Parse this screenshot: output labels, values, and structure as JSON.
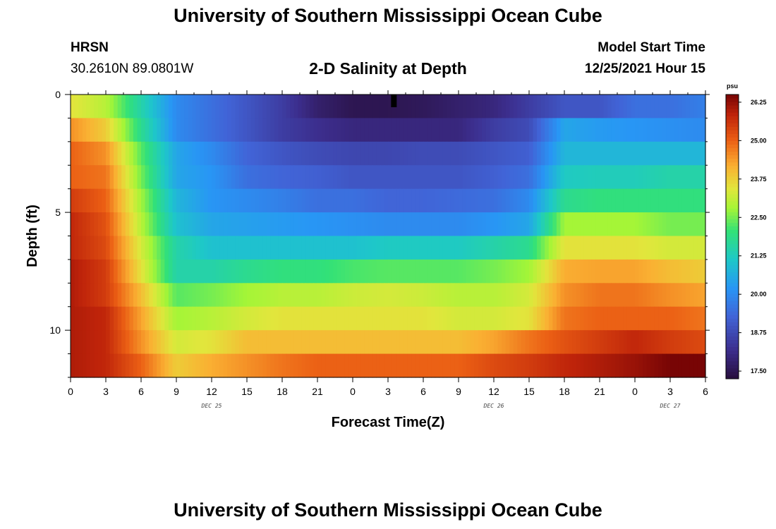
{
  "header": {
    "title_top": "University of Southern Mississippi Ocean Cube",
    "title_bottom": "University of Southern Mississippi Ocean Cube",
    "station": "HRSN",
    "coords": "30.2610N  89.0801W",
    "subtitle": "2-D Salinity at Depth",
    "model_label": "Model Start Time",
    "model_time": "12/25/2021 Hour 15"
  },
  "chart_data": {
    "type": "heatmap",
    "title": "2-D Salinity at Depth",
    "xlabel": "Forecast Time(Z)",
    "ylabel": "Depth (ft)",
    "x_tick_labels": [
      "0",
      "3",
      "6",
      "9",
      "12",
      "15",
      "18",
      "21",
      "0",
      "3",
      "6",
      "9",
      "12",
      "15",
      "18",
      "21",
      "0",
      "3",
      "6"
    ],
    "date_labels": [
      {
        "text": "DEC 25",
        "at_hour": 12
      },
      {
        "text": "DEC 26",
        "at_hour": 36
      },
      {
        "text": "DEC 27",
        "at_hour": 51
      }
    ],
    "x_range_hours": [
      0,
      54
    ],
    "y_ticks": [
      0,
      5,
      10
    ],
    "y_range_ft": [
      0,
      12
    ],
    "depth_levels_ft": [
      0.5,
      1.5,
      2.5,
      3.5,
      4.5,
      5.5,
      6.5,
      7.5,
      8.5,
      9.5,
      10.5,
      11.5
    ],
    "colorbar": {
      "unit": "psu",
      "min": 17.25,
      "max": 26.5,
      "tick_labels": [
        "17.50",
        "18.75",
        "20.00",
        "21.25",
        "22.50",
        "23.75",
        "25.00",
        "26.25"
      ]
    },
    "profile_times_hours": [
      0,
      3,
      6,
      9,
      12,
      15,
      18,
      21,
      24,
      27,
      30,
      33,
      36,
      39,
      42,
      45,
      48,
      51,
      54
    ],
    "salinity_psu": [
      [
        23.5,
        23.0,
        21.5,
        20.0,
        19.5,
        19.0,
        18.5,
        17.8,
        17.5,
        17.5,
        17.6,
        17.8,
        18.0,
        18.5,
        19.0,
        19.0,
        19.5,
        19.5,
        19.8
      ],
      [
        24.5,
        23.8,
        21.8,
        20.0,
        19.5,
        19.0,
        18.5,
        18.2,
        18.0,
        18.0,
        18.0,
        18.0,
        18.5,
        18.8,
        20.5,
        20.3,
        20.2,
        20.1,
        20.0
      ],
      [
        25.0,
        24.5,
        22.3,
        20.5,
        20.0,
        19.3,
        19.0,
        18.8,
        18.7,
        18.7,
        18.8,
        18.8,
        19.0,
        19.2,
        20.8,
        20.8,
        20.8,
        20.8,
        20.8
      ],
      [
        25.0,
        24.8,
        22.5,
        20.5,
        20.2,
        19.5,
        19.3,
        19.2,
        19.0,
        19.0,
        19.0,
        19.0,
        19.2,
        19.5,
        21.2,
        21.3,
        21.3,
        21.5,
        21.5
      ],
      [
        25.5,
        25.0,
        22.8,
        20.8,
        20.2,
        20.0,
        19.8,
        19.5,
        19.5,
        19.3,
        19.3,
        19.4,
        19.5,
        20.0,
        21.8,
        22.0,
        22.0,
        22.0,
        22.0
      ],
      [
        25.8,
        25.2,
        23.0,
        21.0,
        20.5,
        20.4,
        20.3,
        20.2,
        20.1,
        20.0,
        20.0,
        20.0,
        20.2,
        20.5,
        22.8,
        22.8,
        22.8,
        22.5,
        22.5
      ],
      [
        25.8,
        25.3,
        23.3,
        21.5,
        21.0,
        21.0,
        21.0,
        21.0,
        21.0,
        21.2,
        21.2,
        21.2,
        21.5,
        21.8,
        23.5,
        23.5,
        23.5,
        23.3,
        23.3
      ],
      [
        26.0,
        25.5,
        23.5,
        21.5,
        21.5,
        21.8,
        22.0,
        22.0,
        22.2,
        22.3,
        22.3,
        22.3,
        22.5,
        22.8,
        24.2,
        24.3,
        24.3,
        24.0,
        23.8
      ],
      [
        26.0,
        25.5,
        24.0,
        22.3,
        22.5,
        22.8,
        23.0,
        23.0,
        23.2,
        23.3,
        23.2,
        23.0,
        23.0,
        23.3,
        24.5,
        24.8,
        24.8,
        24.5,
        24.3
      ],
      [
        26.0,
        25.8,
        24.3,
        22.8,
        23.0,
        23.3,
        23.5,
        23.5,
        23.5,
        23.5,
        23.5,
        23.3,
        23.3,
        23.5,
        24.8,
        25.0,
        25.0,
        25.0,
        24.8
      ],
      [
        26.0,
        25.8,
        24.5,
        23.3,
        23.5,
        24.0,
        24.0,
        24.0,
        24.0,
        24.0,
        24.0,
        24.0,
        24.3,
        24.8,
        25.2,
        25.5,
        25.8,
        25.5,
        25.3
      ],
      [
        26.0,
        25.8,
        25.0,
        23.8,
        24.2,
        24.5,
        24.8,
        25.0,
        25.0,
        25.0,
        25.0,
        25.0,
        25.3,
        25.5,
        25.8,
        26.0,
        26.2,
        26.5,
        26.5
      ]
    ],
    "marker": {
      "hour": 27.5,
      "depth_ft": 0.3
    }
  }
}
